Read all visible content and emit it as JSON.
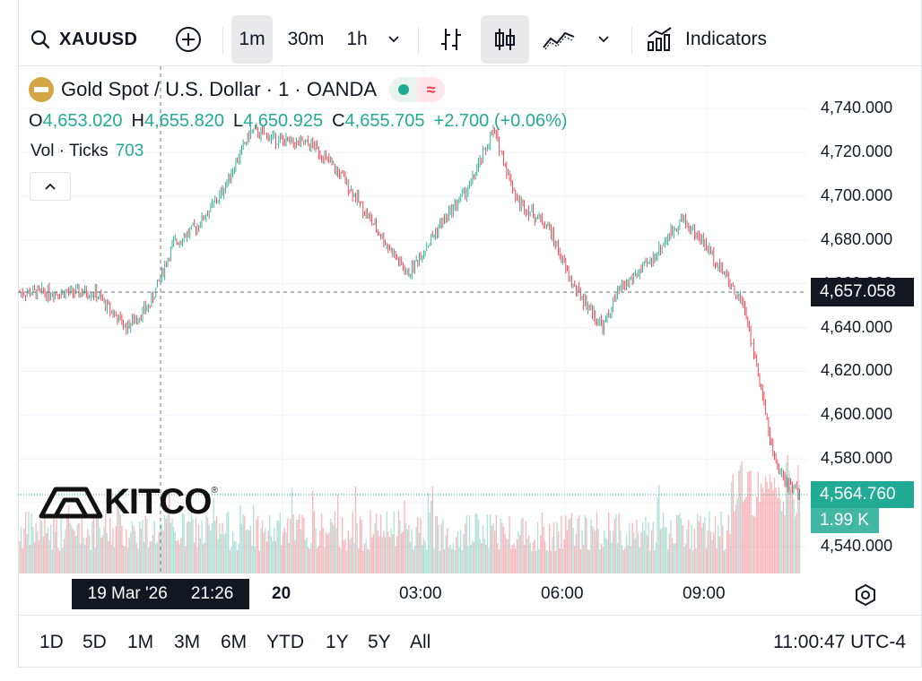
{
  "toolbar": {
    "symbol": "XAUUSD",
    "intervals": [
      "1m",
      "30m",
      "1h"
    ],
    "active_interval": "1m",
    "indicators_label": "Indicators"
  },
  "legend": {
    "title": "Gold Spot / U.S. Dollar · 1 · OANDA",
    "open_label": "O",
    "open": "4,653.020",
    "high_label": "H",
    "high": "4,655.820",
    "low_label": "L",
    "low": "4,650.925",
    "close_label": "C",
    "close": "4,655.705",
    "change": "+2.700 (+0.06%)",
    "volume_label": "Vol · Ticks",
    "volume": "703"
  },
  "crosshair": {
    "date": "19 Mar '26",
    "time": "21:26",
    "price": "4,657.058"
  },
  "last_price": "4,564.760",
  "last_volume": "1.99 K",
  "logo_text": "KITCO",
  "ranges": [
    "1D",
    "5D",
    "1M",
    "3M",
    "6M",
    "YTD",
    "1Y",
    "5Y",
    "All"
  ],
  "clock": "11:00:47 UTC-4",
  "colors": {
    "up": "#22ab94",
    "down": "#f23645",
    "crosshair_tag": "#131722"
  },
  "chart_data": {
    "type": "candlestick",
    "symbol": "XAUUSD",
    "interval": "1m",
    "ylim": [
      4530,
      4750
    ],
    "y_ticks": [
      4540,
      4560,
      4580,
      4600,
      4620,
      4640,
      4660,
      4680,
      4700,
      4720,
      4740
    ],
    "y_tick_labels": [
      "4,540.000",
      "4,560.000",
      "4,580.000",
      "4,600.000",
      "4,620.000",
      "4,640.000",
      "4,660.000",
      "4,680.000",
      "4,700.000",
      "4,720.000",
      "4,740.000"
    ],
    "x_ticks": [
      "20",
      "03:00",
      "06:00",
      "09:00"
    ],
    "price_path_approx": [
      {
        "t": "19 Mar 20:00",
        "y": 4656
      },
      {
        "t": "19 Mar 20:40",
        "y": 4640
      },
      {
        "t": "19 Mar 21:10",
        "y": 4650
      },
      {
        "t": "19 Mar 21:40",
        "y": 4678
      },
      {
        "t": "19 Mar 22:10",
        "y": 4686
      },
      {
        "t": "19 Mar 22:40",
        "y": 4700
      },
      {
        "t": "19 Mar 23:20",
        "y": 4730
      },
      {
        "t": "20 Mar 00:00",
        "y": 4725
      },
      {
        "t": "20 Mar 00:40",
        "y": 4723
      },
      {
        "t": "20 Mar 01:20",
        "y": 4707
      },
      {
        "t": "20 Mar 02:00",
        "y": 4685
      },
      {
        "t": "20 Mar 02:40",
        "y": 4664
      },
      {
        "t": "20 Mar 03:20",
        "y": 4686
      },
      {
        "t": "20 Mar 04:00",
        "y": 4705
      },
      {
        "t": "20 Mar 04:30",
        "y": 4730
      },
      {
        "t": "20 Mar 05:00",
        "y": 4698
      },
      {
        "t": "20 Mar 05:40",
        "y": 4686
      },
      {
        "t": "20 Mar 06:10",
        "y": 4660
      },
      {
        "t": "20 Mar 06:50",
        "y": 4640
      },
      {
        "t": "20 Mar 07:10",
        "y": 4657
      },
      {
        "t": "20 Mar 07:50",
        "y": 4670
      },
      {
        "t": "20 Mar 08:30",
        "y": 4690
      },
      {
        "t": "20 Mar 09:00",
        "y": 4678
      },
      {
        "t": "20 Mar 09:30",
        "y": 4662
      },
      {
        "t": "20 Mar 09:50",
        "y": 4650
      },
      {
        "t": "20 Mar 10:10",
        "y": 4615
      },
      {
        "t": "20 Mar 10:30",
        "y": 4578
      },
      {
        "t": "20 Mar 10:45",
        "y": 4568
      },
      {
        "t": "20 Mar 11:00",
        "y": 4565
      }
    ],
    "last_price": 4564.76,
    "last_volume_k": 1.99
  }
}
